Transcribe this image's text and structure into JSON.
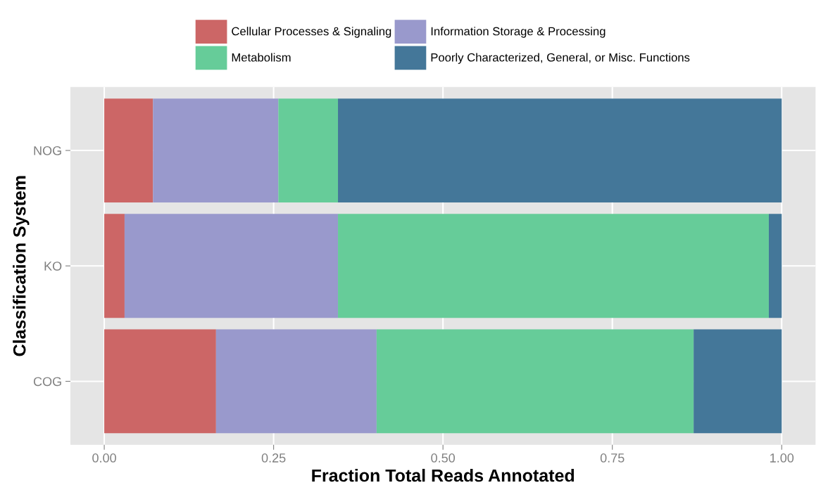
{
  "chart_data": {
    "type": "bar",
    "orientation": "horizontal",
    "stacked": true,
    "xlabel": "Fraction Total Reads Annotated",
    "ylabel": "Classification System",
    "categories": [
      "NOG",
      "KO",
      "COG"
    ],
    "series": [
      {
        "name": "Cellular Processes & Signaling",
        "color": "#cc6666",
        "values": [
          0.072,
          0.03,
          0.165
        ]
      },
      {
        "name": "Information Storage & Processing",
        "color": "#9999cc",
        "values": [
          0.185,
          0.315,
          0.237
        ]
      },
      {
        "name": "Metabolism",
        "color": "#66cc99",
        "values": [
          0.088,
          0.636,
          0.468
        ]
      },
      {
        "name": "Poorly Characterized, General, or Misc. Functions",
        "color": "#447799",
        "values": [
          0.655,
          0.019,
          0.13
        ]
      }
    ],
    "xlim": [
      -0.05,
      1.05
    ],
    "xticks": [
      {
        "value": 0,
        "label": "0.00"
      },
      {
        "value": 0.25,
        "label": "0.25"
      },
      {
        "value": 0.5,
        "label": "0.50"
      },
      {
        "value": 0.75,
        "label": "0.75"
      },
      {
        "value": 1,
        "label": "1.00"
      }
    ],
    "grid": true,
    "legend": "top"
  }
}
